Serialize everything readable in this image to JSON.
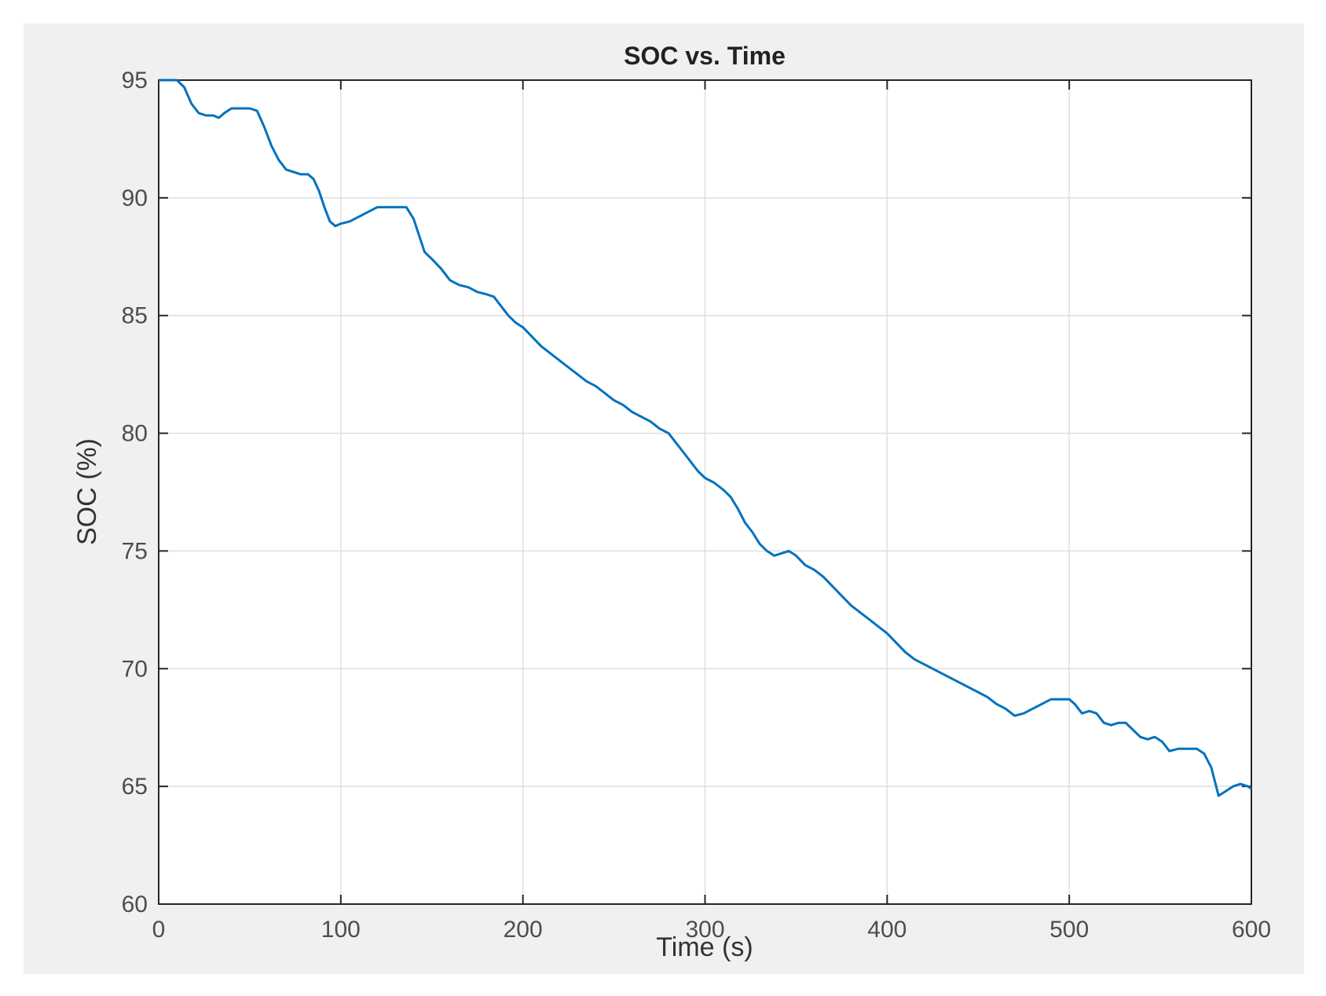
{
  "chart_data": {
    "type": "line",
    "title": "SOC vs. Time",
    "xlabel": "Time (s)",
    "ylabel": "SOC (%)",
    "xlim": [
      0,
      600
    ],
    "ylim": [
      60,
      95
    ],
    "xticks": [
      0,
      100,
      200,
      300,
      400,
      500,
      600
    ],
    "yticks": [
      60,
      65,
      70,
      75,
      80,
      85,
      90,
      95
    ],
    "grid": true,
    "line_color": "#0072bd",
    "series": [
      {
        "x": [
          0,
          5,
          10,
          14,
          18,
          22,
          26,
          30,
          33,
          36,
          40,
          45,
          50,
          54,
          58,
          62,
          66,
          70,
          74,
          78,
          82,
          85,
          88,
          91,
          94,
          97,
          100,
          105,
          110,
          115,
          120,
          125,
          130,
          136,
          140,
          143,
          146,
          150,
          155,
          160,
          165,
          170,
          175,
          180,
          184,
          188,
          192,
          196,
          200,
          205,
          210,
          215,
          220,
          225,
          230,
          235,
          240,
          245,
          250,
          255,
          260,
          265,
          270,
          275,
          280,
          284,
          288,
          292,
          296,
          300,
          305,
          310,
          314,
          318,
          322,
          326,
          330,
          334,
          338,
          342,
          346,
          350,
          355,
          360,
          365,
          370,
          375,
          380,
          385,
          390,
          395,
          400,
          405,
          410,
          415,
          420,
          425,
          430,
          435,
          440,
          445,
          450,
          455,
          460,
          465,
          470,
          475,
          480,
          485,
          490,
          495,
          500,
          503,
          507,
          511,
          515,
          519,
          523,
          527,
          531,
          535,
          539,
          543,
          547,
          551,
          555,
          560,
          565,
          570,
          574,
          578,
          582,
          586,
          590,
          594,
          598,
          600
        ],
        "y": [
          95.0,
          95.0,
          95.0,
          94.7,
          94.0,
          93.6,
          93.5,
          93.5,
          93.4,
          93.6,
          93.8,
          93.8,
          93.8,
          93.7,
          93.0,
          92.2,
          91.6,
          91.2,
          91.1,
          91.0,
          91.0,
          90.8,
          90.3,
          89.6,
          89.0,
          88.8,
          88.9,
          89.0,
          89.2,
          89.4,
          89.6,
          89.6,
          89.6,
          89.6,
          89.1,
          88.4,
          87.7,
          87.4,
          87.0,
          86.5,
          86.3,
          86.2,
          86.0,
          85.9,
          85.8,
          85.4,
          85.0,
          84.7,
          84.5,
          84.1,
          83.7,
          83.4,
          83.1,
          82.8,
          82.5,
          82.2,
          82.0,
          81.7,
          81.4,
          81.2,
          80.9,
          80.7,
          80.5,
          80.2,
          80.0,
          79.6,
          79.2,
          78.8,
          78.4,
          78.1,
          77.9,
          77.6,
          77.3,
          76.8,
          76.2,
          75.8,
          75.3,
          75.0,
          74.8,
          74.9,
          75.0,
          74.8,
          74.4,
          74.2,
          73.9,
          73.5,
          73.1,
          72.7,
          72.4,
          72.1,
          71.8,
          71.5,
          71.1,
          70.7,
          70.4,
          70.2,
          70.0,
          69.8,
          69.6,
          69.4,
          69.2,
          69.0,
          68.8,
          68.5,
          68.3,
          68.0,
          68.1,
          68.3,
          68.5,
          68.7,
          68.7,
          68.7,
          68.5,
          68.1,
          68.2,
          68.1,
          67.7,
          67.6,
          67.7,
          67.7,
          67.4,
          67.1,
          67.0,
          67.1,
          66.9,
          66.5,
          66.6,
          66.6,
          66.6,
          66.4,
          65.8,
          64.6,
          64.8,
          65.0,
          65.1,
          65.0,
          64.9
        ]
      }
    ]
  }
}
